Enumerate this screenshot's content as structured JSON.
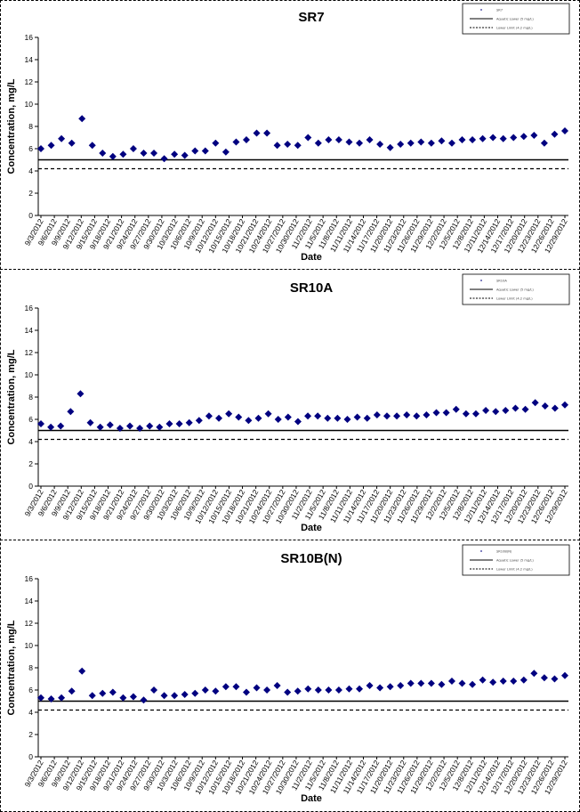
{
  "chart_data": [
    {
      "type": "scatter",
      "title": "SR7",
      "xlabel": "Date",
      "ylabel": "Concentration, mg/L",
      "ylim": [
        0,
        16
      ],
      "yticks": [
        0,
        2,
        4,
        6,
        8,
        10,
        12,
        14,
        16
      ],
      "xtick_labels": [
        "9/3/2012",
        "9/6/2012",
        "9/9/2012",
        "9/12/2012",
        "9/15/2012",
        "9/18/2012",
        "9/21/2012",
        "9/24/2012",
        "9/27/2012",
        "9/30/2012",
        "10/3/2012",
        "10/6/2012",
        "10/9/2012",
        "10/12/2012",
        "10/15/2012",
        "10/18/2012",
        "10/21/2012",
        "10/24/2012",
        "10/27/2012",
        "10/30/2012",
        "11/2/2012",
        "11/5/2012",
        "11/8/2012",
        "11/11/2012",
        "11/14/2012",
        "11/17/2012",
        "11/20/2012",
        "11/23/2012",
        "11/26/2012",
        "11/29/2012",
        "12/2/2012",
        "12/5/2012",
        "12/8/2012",
        "12/11/2012",
        "12/14/2012",
        "12/17/2012",
        "12/20/2012",
        "12/23/2012",
        "12/26/2012",
        "12/29/2012"
      ],
      "series": [
        {
          "name": "SR7",
          "marker": "diamond",
          "color": "#000080",
          "values": [
            6.0,
            6.3,
            6.9,
            6.5,
            8.7,
            6.3,
            5.6,
            5.3,
            5.5,
            6.0,
            5.6,
            5.6,
            5.1,
            5.5,
            5.4,
            5.8,
            5.8,
            6.5,
            5.7,
            6.6,
            6.8,
            7.4,
            7.4,
            6.3,
            6.4,
            6.3,
            7.0,
            6.5,
            6.8,
            6.8,
            6.6,
            6.5,
            6.8,
            6.4,
            6.1,
            6.4,
            6.5,
            6.6,
            6.5,
            6.7,
            6.5,
            6.8,
            6.8,
            6.9,
            7.0,
            6.9,
            7.0,
            7.1,
            7.2,
            6.5,
            7.3,
            7.6
          ]
        },
        {
          "name": "Aquatic Lower (5 mg/L)",
          "style": "solid",
          "values": [
            5
          ]
        },
        {
          "name": "Lower Limit (4.2 mg/L)",
          "style": "dashed",
          "values": [
            4.2
          ]
        }
      ],
      "grid": false,
      "legend": "top-right"
    },
    {
      "type": "scatter",
      "title": "SR10A",
      "xlabel": "Date",
      "ylabel": "Concentration, mg/L",
      "ylim": [
        0,
        16
      ],
      "yticks": [
        0,
        2,
        4,
        6,
        8,
        10,
        12,
        14,
        16
      ],
      "xtick_labels": [
        "9/3/2012",
        "9/6/2012",
        "9/9/2012",
        "9/12/2012",
        "9/15/2012",
        "9/18/2012",
        "9/21/2012",
        "9/24/2012",
        "9/27/2012",
        "9/30/2012",
        "10/3/2012",
        "10/6/2012",
        "10/9/2012",
        "10/12/2012",
        "10/15/2012",
        "10/18/2012",
        "10/21/2012",
        "10/24/2012",
        "10/27/2012",
        "10/30/2012",
        "11/2/2012",
        "11/5/2012",
        "11/8/2012",
        "11/11/2012",
        "11/14/2012",
        "11/17/2012",
        "11/20/2012",
        "11/23/2012",
        "11/26/2012",
        "11/29/2012",
        "12/2/2012",
        "12/5/2012",
        "12/8/2012",
        "12/11/2012",
        "12/14/2012",
        "12/17/2012",
        "12/20/2012",
        "12/23/2012",
        "12/26/2012",
        "12/29/2012"
      ],
      "series": [
        {
          "name": "SR10A",
          "marker": "diamond",
          "color": "#000080",
          "values": [
            5.6,
            5.3,
            5.4,
            6.7,
            8.3,
            5.7,
            5.3,
            5.5,
            5.2,
            5.4,
            5.2,
            5.4,
            5.3,
            5.6,
            5.6,
            5.7,
            5.9,
            6.3,
            6.1,
            6.5,
            6.2,
            5.9,
            6.1,
            6.5,
            6.0,
            6.2,
            5.8,
            6.3,
            6.3,
            6.1,
            6.1,
            6.0,
            6.2,
            6.1,
            6.4,
            6.3,
            6.3,
            6.4,
            6.3,
            6.4,
            6.6,
            6.6,
            6.9,
            6.5,
            6.5,
            6.8,
            6.7,
            6.8,
            7.0,
            6.9,
            7.5,
            7.2,
            7.0,
            7.3
          ]
        },
        {
          "name": "Aquatic Lower (5 mg/L)",
          "style": "solid",
          "values": [
            5
          ]
        },
        {
          "name": "Lower Limit (4.2 mg/L)",
          "style": "dashed",
          "values": [
            4.2
          ]
        }
      ],
      "grid": false,
      "legend": "top-right"
    },
    {
      "type": "scatter",
      "title": "SR10B(N)",
      "xlabel": "Date",
      "ylabel": "Concentration, mg/L",
      "ylim": [
        0,
        16
      ],
      "yticks": [
        0,
        2,
        4,
        6,
        8,
        10,
        12,
        14,
        16
      ],
      "xtick_labels": [
        "9/3/2012",
        "9/6/2012",
        "9/9/2012",
        "9/12/2012",
        "9/15/2012",
        "9/18/2012",
        "9/21/2012",
        "9/24/2012",
        "9/27/2012",
        "9/30/2012",
        "10/3/2012",
        "10/6/2012",
        "10/9/2012",
        "10/12/2012",
        "10/15/2012",
        "10/18/2012",
        "10/21/2012",
        "10/24/2012",
        "10/27/2012",
        "10/30/2012",
        "11/2/2012",
        "11/5/2012",
        "11/8/2012",
        "11/11/2012",
        "11/14/2012",
        "11/17/2012",
        "11/20/2012",
        "11/23/2012",
        "11/26/2012",
        "11/29/2012",
        "12/2/2012",
        "12/5/2012",
        "12/8/2012",
        "12/11/2012",
        "12/14/2012",
        "12/17/2012",
        "12/20/2012",
        "12/23/2012",
        "12/26/2012",
        "12/29/2012"
      ],
      "series": [
        {
          "name": "SR10B(N)",
          "marker": "diamond",
          "color": "#000080",
          "values": [
            5.3,
            5.2,
            5.3,
            5.9,
            7.7,
            5.5,
            5.7,
            5.8,
            5.3,
            5.4,
            5.1,
            6.0,
            5.5,
            5.5,
            5.6,
            5.7,
            6.0,
            5.9,
            6.3,
            6.3,
            5.8,
            6.2,
            6.0,
            6.4,
            5.8,
            5.9,
            6.1,
            6.0,
            6.0,
            6.0,
            6.1,
            6.1,
            6.4,
            6.2,
            6.3,
            6.4,
            6.6,
            6.6,
            6.6,
            6.5,
            6.8,
            6.6,
            6.5,
            6.9,
            6.7,
            6.8,
            6.8,
            6.9,
            7.5,
            7.1,
            7.0,
            7.3
          ]
        },
        {
          "name": "Aquatic Lower (5 mg/L)",
          "style": "solid",
          "values": [
            5
          ]
        },
        {
          "name": "Lower Limit (4.2 mg/L)",
          "style": "dashed",
          "values": [
            4.2
          ]
        }
      ],
      "grid": false,
      "legend": "top-right"
    }
  ]
}
